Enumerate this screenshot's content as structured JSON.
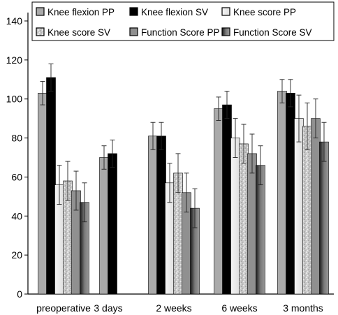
{
  "chart_data": {
    "type": "bar",
    "title": "",
    "xlabel": "",
    "ylabel": "",
    "ylim": [
      0,
      140
    ],
    "yticks": [
      "0",
      "20",
      "40",
      "60",
      "80",
      "100",
      "120",
      "140"
    ],
    "grid": false,
    "legend_position": "top",
    "categories": [
      "preoperative",
      "3 days",
      "2 weeks",
      "6 weeks",
      "3 months"
    ],
    "series": [
      {
        "name": "Knee flexion PP",
        "color": "#aaaaaa",
        "style": "solid-gray",
        "values": [
          103,
          70,
          81,
          95,
          104
        ],
        "errors": [
          6,
          6,
          7,
          6,
          6
        ]
      },
      {
        "name": "Knee flexion SV",
        "color": "#000000",
        "style": "solid-black",
        "values": [
          111,
          72,
          81,
          97,
          103
        ],
        "errors": [
          7,
          7,
          7,
          7,
          7
        ]
      },
      {
        "name": "Knee score PP",
        "color": "#e8e8e8",
        "style": "light",
        "values": [
          56,
          null,
          57,
          80,
          90
        ],
        "errors": [
          10,
          null,
          10,
          10,
          12
        ]
      },
      {
        "name": "Knee score SV",
        "color": "#bdbdbd",
        "style": "speckled",
        "values": [
          58,
          null,
          62,
          77,
          86
        ],
        "errors": [
          10,
          null,
          10,
          10,
          12
        ]
      },
      {
        "name": "Function Score PP",
        "color": "#909090",
        "style": "solid-mid",
        "values": [
          53,
          null,
          52,
          72,
          90
        ],
        "errors": [
          10,
          null,
          10,
          10,
          10
        ]
      },
      {
        "name": "Function Score SV",
        "color": "#707070",
        "style": "gradient-dark",
        "values": [
          47,
          null,
          44,
          66,
          78
        ],
        "errors": [
          10,
          null,
          10,
          10,
          10
        ]
      }
    ]
  }
}
